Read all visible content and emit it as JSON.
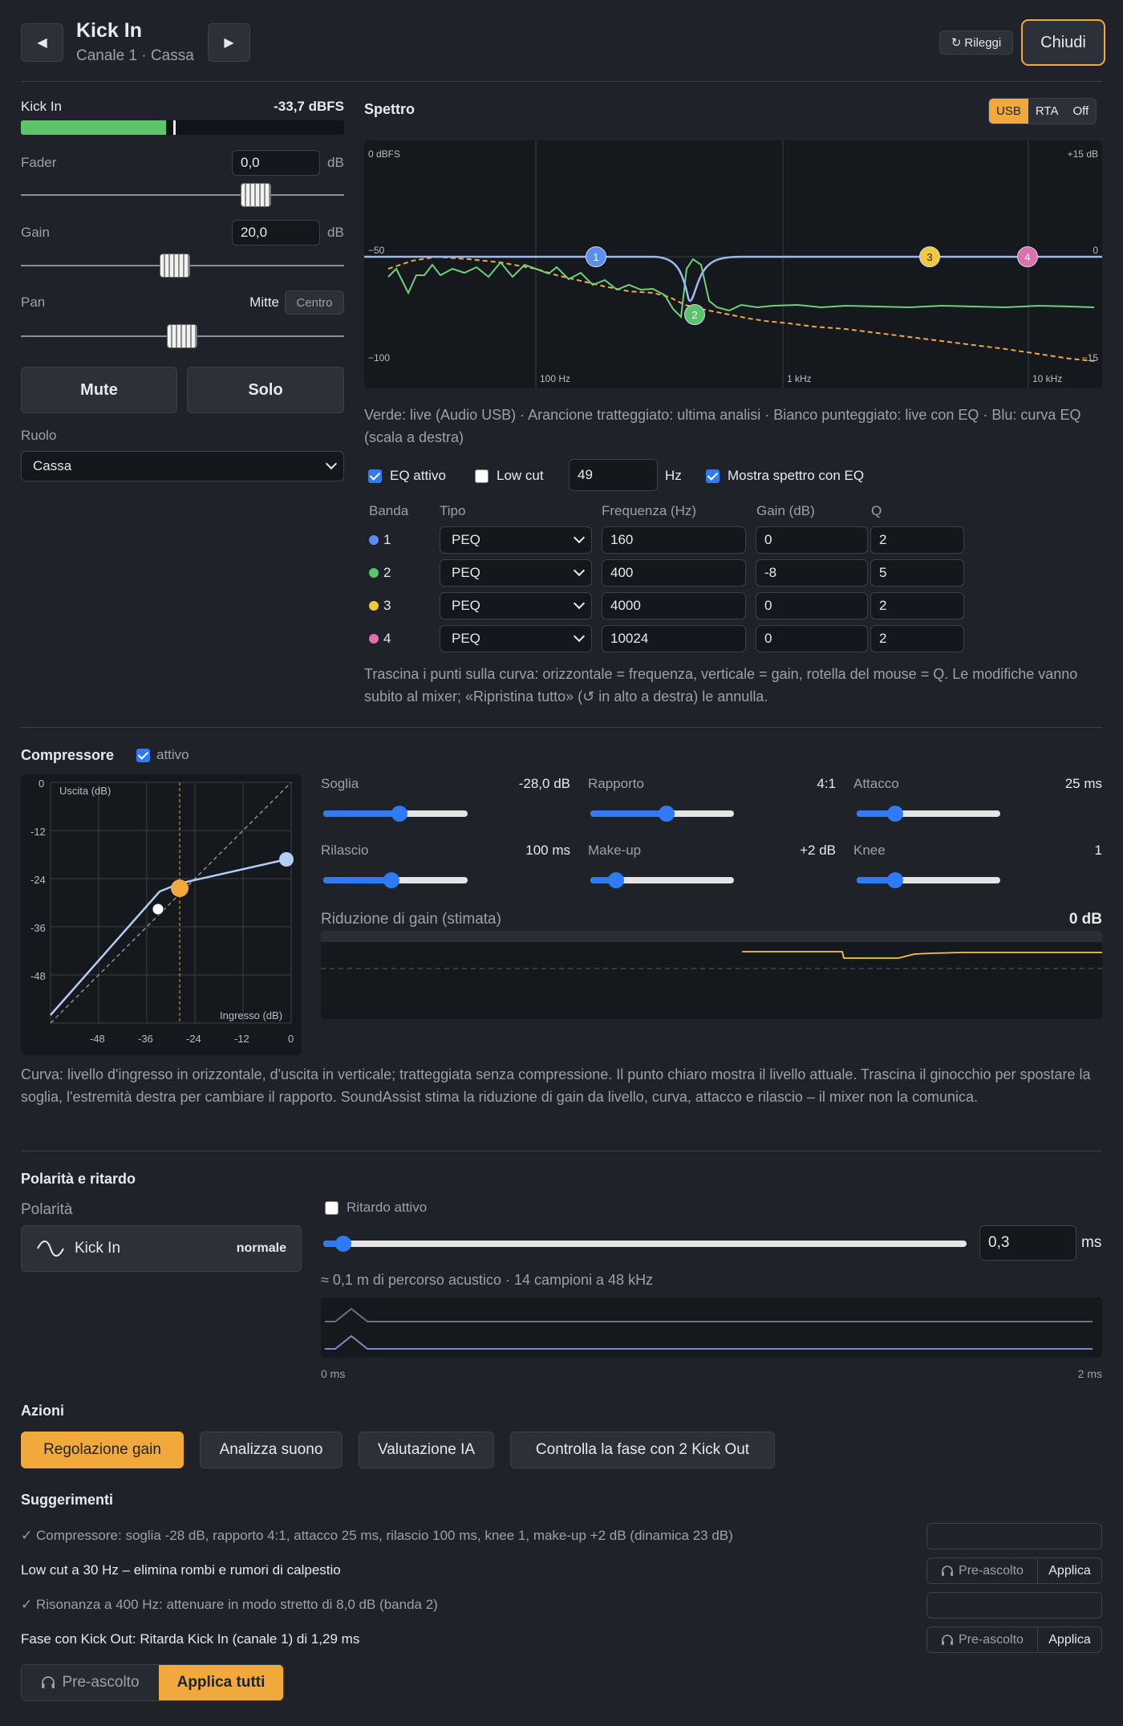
{
  "header": {
    "prev_label": "◀",
    "next_label": "▶",
    "title": "Kick In",
    "subtitle": "Canale 1 · Cassa",
    "reload_icon": "↻",
    "reload_label": "Rileggi",
    "close_label": "Chiudi"
  },
  "channel": {
    "meter_label": "Kick In",
    "meter_value": "-33,7 dBFS",
    "meter_level": 0.45,
    "fader_label": "Fader",
    "fader_value": "0,0",
    "fader_unit": "dB",
    "gain_label": "Gain",
    "gain_value": "20,0",
    "gain_unit": "dB",
    "pan_label": "Pan",
    "pan_value": "Mitte",
    "pan_center_label": "Centro",
    "mute_label": "Mute",
    "solo_label": "Solo",
    "role_label": "Ruolo",
    "role_value": "Cassa"
  },
  "spectrum": {
    "title": "Spettro",
    "modes": [
      "USB",
      "RTA",
      "Off"
    ],
    "active_mode": "USB",
    "label_top_left": "0 dBFS",
    "label_top_right": "+15 dB",
    "label_mid_left": "−50",
    "label_mid_right": "0",
    "label_bot_left": "−100",
    "label_bot_right": "−15",
    "x_labels": [
      "100 Hz",
      "1 kHz",
      "10 kHz"
    ],
    "legend_text": "Verde: live (Audio USB) · Arancione tratteggiato: ultima analisi · Bianco punteggiato: live con EQ · Blu: curva EQ (scala a destra)",
    "eq_active_label": "EQ attivo",
    "low_cut_label": "Low cut",
    "low_cut_value": "49",
    "low_cut_unit": "Hz",
    "show_eq_spectrum_label": "Mostra spettro con EQ",
    "colors": {
      "green": "#6fd07a",
      "orange": "#f2a93b",
      "blue": "#9dbaf0",
      "band1": "#5b8df2",
      "band2": "#5bc46a",
      "band3": "#f2c93b",
      "band4": "#e06fae"
    }
  },
  "eq_table": {
    "headers": [
      "Banda",
      "Tipo",
      "Frequenza (Hz)",
      "Gain (dB)",
      "Q"
    ],
    "bands": [
      {
        "num": "1",
        "type": "PEQ",
        "freq": "160",
        "gain": "0",
        "q": "2",
        "color": "#5b8df2"
      },
      {
        "num": "2",
        "type": "PEQ",
        "freq": "400",
        "gain": "-8",
        "q": "5",
        "color": "#5bc46a"
      },
      {
        "num": "3",
        "type": "PEQ",
        "freq": "4000",
        "gain": "0",
        "q": "2",
        "color": "#f2c93b"
      },
      {
        "num": "4",
        "type": "PEQ",
        "freq": "10024",
        "gain": "0",
        "q": "2",
        "color": "#e06fae"
      }
    ],
    "help_text": "Trascina i punti sulla curva: orizzontale = frequenza, verticale = gain, rotella del mouse = Q. Le modifiche vanno subito al mixer; «Ripristina tutto» (↺ in alto a destra) le annulla."
  },
  "compressor": {
    "title": "Compressore",
    "active_label": "attivo",
    "graph_y_label": "Uscita (dB)",
    "graph_x_label": "Ingresso (dB)",
    "y_ticks": [
      "0",
      "-12",
      "-24",
      "-36",
      "-48"
    ],
    "x_ticks": [
      "-48",
      "-36",
      "-24",
      "-12",
      "0"
    ],
    "threshold_label": "Soglia",
    "threshold_value": "-28,0 dB",
    "ratio_label": "Rapporto",
    "ratio_value": "4:1",
    "attack_label": "Attacco",
    "attack_value": "25 ms",
    "release_label": "Rilascio",
    "release_value": "100 ms",
    "makeup_label": "Make-up",
    "makeup_value": "+2 dB",
    "knee_label": "Knee",
    "knee_value": "1",
    "gr_label": "Riduzione di gain (stimata)",
    "gr_value": "0 dB",
    "help_text": "Curva: livello d'ingresso in orizzontale, d'uscita in verticale; tratteggiata senza compressione. Il punto chiaro mostra il livello attuale. Trascina il ginocchio per spostare la soglia, l'estremità destra per cambiare il rapporto. SoundAssist stima la riduzione di gain da livello, curva, attacco e rilascio – il mixer non la comunica."
  },
  "polarity": {
    "title": "Polarità e ritardo",
    "polarity_label": "Polarità",
    "channel_name": "Kick In",
    "polarity_state": "normale",
    "delay_active_label": "Ritardo attivo",
    "delay_value": "0,3",
    "delay_unit": "ms",
    "delay_info": "≈ 0,1 m di percorso acustico · 14 campioni a 48 kHz",
    "scale_start": "0 ms",
    "scale_end": "2 ms"
  },
  "actions": {
    "title": "Azioni",
    "buttons": [
      "Regolazione gain",
      "Analizza suono",
      "Valutazione IA",
      "Controlla la fase con 2 Kick Out"
    ]
  },
  "suggestions": {
    "title": "Suggerimenti",
    "items": [
      {
        "text": "✓ Compressore: soglia -28 dB, rapporto 4:1, attacco 25 ms, rilascio 100 ms, knee 1, make-up +2 dB (dinamica 23 dB)",
        "done": true
      },
      {
        "text": "Low cut a 30 Hz – elimina rombi e rumori di calpestio",
        "done": false
      },
      {
        "text": "✓ Risonanza a 400 Hz: attenuare in modo stretto di 8,0 dB (banda 2)",
        "done": true
      },
      {
        "text": "Fase con Kick Out: Ritarda Kick In (canale 1) di 1,29 ms",
        "done": false
      }
    ],
    "preview_label": "Pre-ascolto",
    "apply_label": "Applica",
    "preview_all_label": "Pre-ascolto",
    "apply_all_label": "Applica tutti"
  }
}
